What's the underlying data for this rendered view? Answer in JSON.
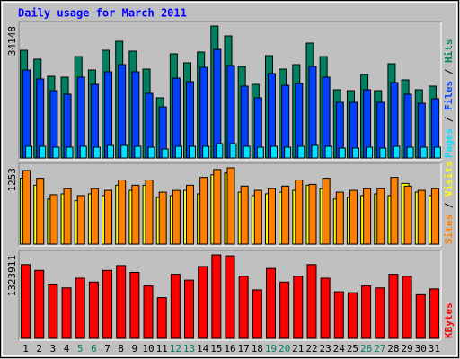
{
  "chart_data": {
    "type": "bar",
    "title": "Daily usage for March 2011",
    "categories": [
      1,
      2,
      3,
      4,
      5,
      6,
      7,
      8,
      9,
      10,
      11,
      12,
      13,
      14,
      15,
      16,
      17,
      18,
      19,
      20,
      21,
      22,
      23,
      24,
      25,
      26,
      27,
      28,
      29,
      30,
      31
    ],
    "category_colors": [
      "#000000",
      "#000000",
      "#000000",
      "#000000",
      "#008060",
      "#008060",
      "#000000",
      "#000000",
      "#000000",
      "#000000",
      "#000000",
      "#008060",
      "#008060",
      "#000000",
      "#000000",
      "#000000",
      "#000000",
      "#000000",
      "#008060",
      "#008060",
      "#000000",
      "#000000",
      "#000000",
      "#000000",
      "#000000",
      "#008060",
      "#008060",
      "#000000",
      "#000000",
      "#000000",
      "#000000"
    ],
    "legend_separator": " / ",
    "panels": [
      {
        "ylim": [
          0,
          34148
        ],
        "yticks": [
          34148
        ],
        "series": [
          {
            "name": "Hits",
            "color": "#008060",
            "values": [
              27876,
              25553,
              21139,
              20907,
              26250,
              22765,
              27876,
              30199,
              27644,
              22998,
              15564,
              26947,
              24624,
              27411,
              34148,
              31593,
              23695,
              19049,
              26482,
              22998,
              24159,
              29734,
              26250,
              17655,
              17423,
              21604,
              17423,
              24392,
              20210,
              17655,
              18584
            ]
          },
          {
            "name": "Files",
            "color": "#0040ff",
            "values": [
              22765,
              20442,
              17423,
              16493,
              20907,
              19049,
              22301,
              24159,
              22301,
              16726,
              13241,
              20675,
              19746,
              23462,
              28108,
              23927,
              18584,
              15564,
              21836,
              18816,
              19281,
              23695,
              20907,
              14403,
              14403,
              17655,
              14403,
              19513,
              16493,
              14170,
              15332
            ]
          },
          {
            "name": "Pages",
            "color": "#00e0ff",
            "values": [
              3020,
              3020,
              2788,
              2788,
              3020,
              2788,
              3252,
              3252,
              3020,
              2788,
              2323,
              3020,
              3020,
              3020,
              3717,
              3717,
              3020,
              2788,
              3020,
              2788,
              3020,
              3252,
              3020,
              2555,
              2555,
              2788,
              2555,
              3020,
              2788,
              2788,
              2788
            ]
          }
        ]
      },
      {
        "ylim": [
          0,
          1253
        ],
        "yticks": [
          1253
        ],
        "series": [
          {
            "name": "Visits",
            "color": "#ffff00",
            "values": [
              1082,
              968,
              740,
              826,
              712,
              826,
              797,
              968,
              883,
              968,
              769,
              797,
              883,
              826,
              1139,
              1168,
              854,
              797,
              826,
              854,
              883,
              968,
              911,
              740,
              769,
              797,
              826,
              797,
              997,
              854,
              797
            ]
          },
          {
            "name": "Sites",
            "color": "#ff8000",
            "values": [
              1210,
              1082,
              812,
              911,
              797,
              911,
              883,
              1054,
              968,
              1054,
              854,
              883,
              968,
              1096,
              1225,
              1253,
              954,
              883,
              911,
              954,
              1054,
              982,
              1082,
              854,
              883,
              911,
              911,
              1096,
              954,
              883,
              911
            ]
          }
        ]
      },
      {
        "ylim": [
          0,
          1323911
        ],
        "yticks": [
          1323911
        ],
        "series": [
          {
            "name": "KBytes",
            "color": "#ff0000",
            "values": [
              1169944,
              1077580,
              862064,
              800488,
              954428,
              892852,
              1077580,
              1154550,
              1046792,
              831276,
              646548,
              1016004,
              923640,
              1139156,
              1323911,
              1308490,
              985216,
              769700,
              1108368,
              892852,
              985216,
              1169944,
              954428,
              738912,
              723518,
              831276,
              800488,
              1016004,
              985216,
              692730,
              785094
            ]
          }
        ]
      }
    ]
  }
}
